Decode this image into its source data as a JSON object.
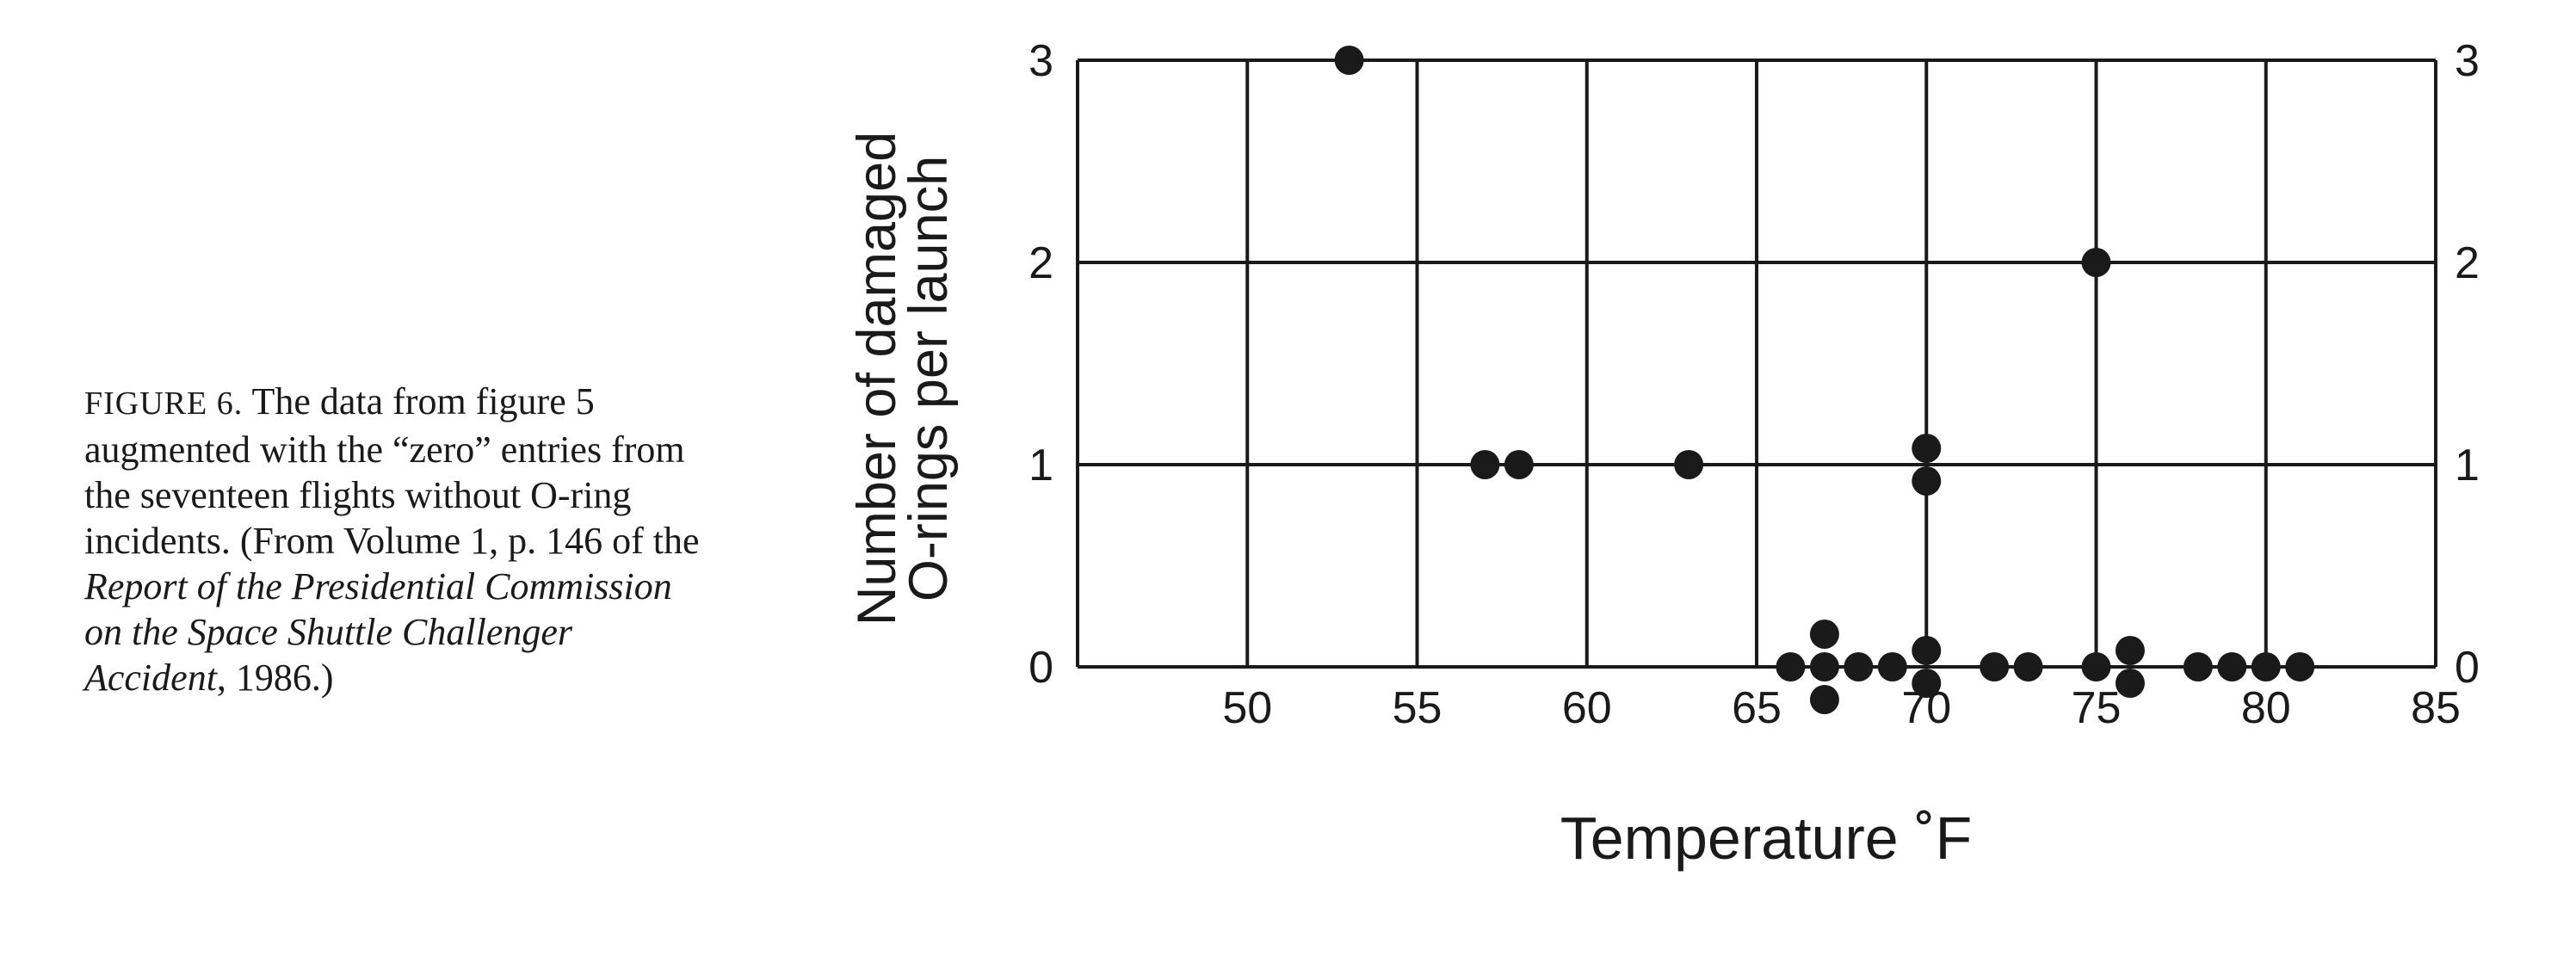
{
  "caption": {
    "label": "FIGURE 6.",
    "text_main": "The data from figure 5 augmented with the “zero” entries from the seventeen flights without O-ring incidents. (From Volume 1, p. 146 of the",
    "text_title": "Report of the Presidential Commission on the Space Shuttle Challenger Accident",
    "text_end": ", 1986.)"
  },
  "chart_data": {
    "type": "scatter",
    "xlabel": "Temperature ˚F",
    "ylabel_line1": "Number of damaged",
    "ylabel_line2": "O-rings per launch",
    "xlim": [
      45,
      85
    ],
    "ylim": [
      0,
      3
    ],
    "x_ticks": [
      50,
      55,
      60,
      65,
      70,
      75,
      80,
      85
    ],
    "y_ticks": [
      0,
      1,
      2,
      3
    ],
    "y_ticks_right": [
      0,
      1,
      2,
      3
    ],
    "grid": true,
    "points": [
      {
        "x": 53,
        "y": 3
      },
      {
        "x": 57,
        "y": 1
      },
      {
        "x": 58,
        "y": 1
      },
      {
        "x": 63,
        "y": 1
      },
      {
        "x": 70,
        "y": 1
      },
      {
        "x": 70,
        "y": 1
      },
      {
        "x": 75,
        "y": 2
      },
      {
        "x": 66,
        "y": 0
      },
      {
        "x": 67,
        "y": 0
      },
      {
        "x": 67,
        "y": 0
      },
      {
        "x": 67,
        "y": 0
      },
      {
        "x": 68,
        "y": 0
      },
      {
        "x": 69,
        "y": 0
      },
      {
        "x": 70,
        "y": 0
      },
      {
        "x": 70,
        "y": 0
      },
      {
        "x": 72,
        "y": 0
      },
      {
        "x": 73,
        "y": 0
      },
      {
        "x": 75,
        "y": 0
      },
      {
        "x": 76,
        "y": 0
      },
      {
        "x": 76,
        "y": 0
      },
      {
        "x": 78,
        "y": 0
      },
      {
        "x": 79,
        "y": 0
      },
      {
        "x": 80,
        "y": 0
      },
      {
        "x": 81,
        "y": 0
      }
    ],
    "point_color": "#1a1a1a"
  }
}
